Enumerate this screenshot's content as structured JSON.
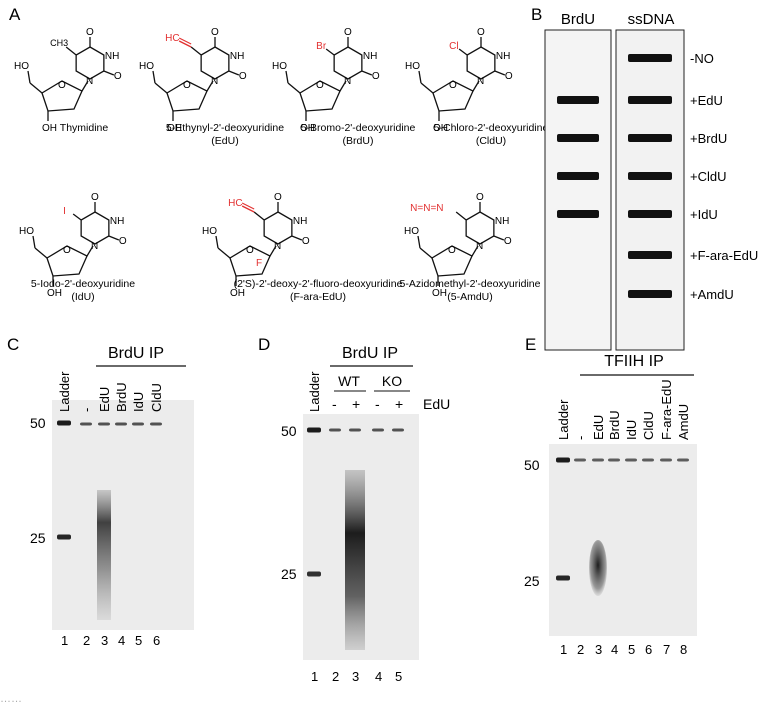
{
  "panels": {
    "A": "A",
    "B": "B",
    "C": "C",
    "D": "D",
    "E": "E"
  },
  "colors": {
    "accent_red": "#e23030",
    "gel_bg": "#ececec",
    "band": "#111111"
  },
  "panelA": {
    "structures": [
      {
        "name": "Thymidine",
        "abbr": "",
        "substituent": "CH3",
        "sub_label": ""
      },
      {
        "name": "5-Ethynyl-2'-deoxyuridine",
        "abbr": "(EdU)",
        "substituent": "ethynyl",
        "sub_label": "HC"
      },
      {
        "name": "5-Bromo-2'-deoxyuridine",
        "abbr": "(BrdU)",
        "substituent": "Br",
        "sub_label": "Br"
      },
      {
        "name": "5-Chloro-2'-deoxyuridine",
        "abbr": "(CldU)",
        "substituent": "Cl",
        "sub_label": "Cl"
      },
      {
        "name": "5-Iodo-2'-deoxyuridine",
        "abbr": "(IdU)",
        "substituent": "I",
        "sub_label": "I"
      },
      {
        "name": "(2'S)-2'-deoxy-2'-fluoro-deoxyuridine",
        "abbr": "(F-ara-EdU)",
        "substituent": "ethynyl",
        "sub_label": "HC"
      },
      {
        "name": "5-Azidomethyl-2'-deoxyuridine",
        "abbr": "(5-AmdU)",
        "substituent": "azide",
        "sub_label": "N=N=N"
      }
    ],
    "atoms": {
      "O": "O",
      "N": "N",
      "H": "H",
      "NH": "NH",
      "HO": "HO",
      "OH": "OH",
      "F": "F",
      "CH3": "CH3"
    }
  },
  "panelB": {
    "headers": [
      "BrdU",
      "ssDNA"
    ],
    "rows": [
      "-NO",
      "+EdU",
      "+BrdU",
      "+CldU",
      "+IdU",
      "+F-ara-EdU",
      "+AmdU"
    ],
    "brdu_bands": [
      0,
      1,
      1,
      1,
      1,
      0,
      0
    ],
    "ssdna_bands": [
      1,
      1,
      1,
      1,
      1,
      1,
      1
    ]
  },
  "panelC": {
    "title": "BrdU IP",
    "lanes": [
      "Ladder",
      "-",
      "EdU",
      "BrdU",
      "IdU",
      "CldU"
    ],
    "numbers": [
      "1",
      "2",
      "3",
      "4",
      "5",
      "6"
    ],
    "markers": [
      "50",
      "25"
    ]
  },
  "panelD": {
    "title": "BrdU IP",
    "groups": [
      "WT",
      "KO"
    ],
    "ladder": "Ladder",
    "edu_label": "EdU",
    "signs": [
      "-",
      "+",
      "-",
      "+"
    ],
    "numbers": [
      "1",
      "2",
      "3",
      "4",
      "5"
    ],
    "markers": [
      "50",
      "25"
    ]
  },
  "panelE": {
    "title": "TFIIH IP",
    "lanes": [
      "Ladder",
      "-",
      "EdU",
      "BrdU",
      "IdU",
      "CldU",
      "F-ara-EdU",
      "AmdU"
    ],
    "numbers": [
      "1",
      "2",
      "3",
      "4",
      "5",
      "6",
      "7",
      "8"
    ],
    "markers": [
      "50",
      "25"
    ]
  },
  "caption": "……"
}
